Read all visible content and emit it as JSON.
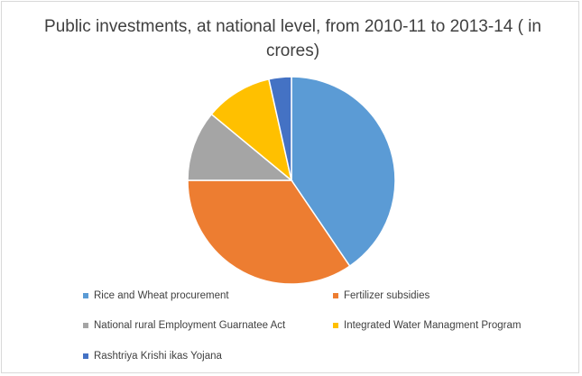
{
  "chart_data": {
    "type": "pie",
    "title": "Public investments, at national level, from 2010-11 to 2013-14 ( in crores)",
    "start_angle_deg": 0,
    "direction": "clockwise",
    "categories": [
      "Rice and Wheat procurement",
      "Fertilizer subsidies",
      "National rural Employment Guarnatee Act",
      "Integrated Water Managment Program",
      "Rashtriya Krishi ikas Yojana"
    ],
    "values": [
      40.5,
      34.5,
      11.0,
      10.5,
      3.5
    ],
    "colors": [
      "#5b9bd5",
      "#ed7d31",
      "#a5a5a5",
      "#ffc000",
      "#4472c4"
    ],
    "legend_position": "bottom"
  }
}
